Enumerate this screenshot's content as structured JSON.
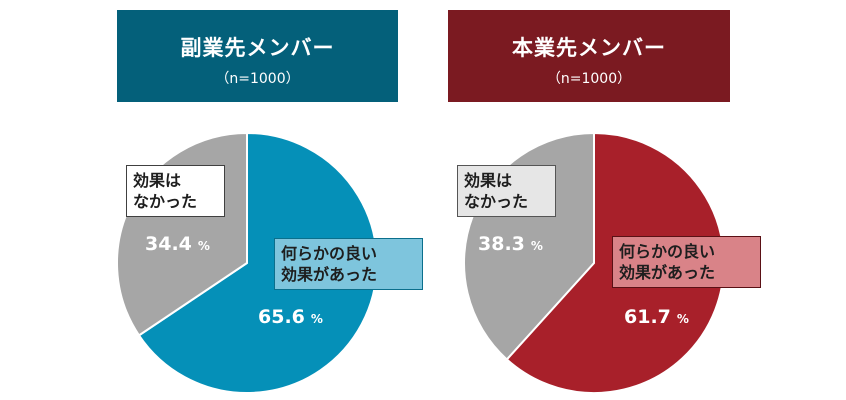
{
  "colors": {
    "left_header": "#04607a",
    "right_header": "#7b1a21",
    "left_main": "#0590b8",
    "right_main": "#a8202a",
    "other": "#a6a6a6"
  },
  "chart_data": [
    {
      "type": "pie",
      "title": "副業先メンバー",
      "subtitle": "（n=1000）",
      "unit": "%",
      "slices": [
        {
          "label": "何らかの良い効果があった",
          "label_lines": [
            "何らかの良い",
            "効果があった"
          ],
          "value": 65.6,
          "value_text": "65.6"
        },
        {
          "label": "効果はなかった",
          "label_lines": [
            "効果は",
            "なかった"
          ],
          "value": 34.4,
          "value_text": "34.4"
        }
      ]
    },
    {
      "type": "pie",
      "title": "本業先メンバー",
      "subtitle": "（n=1000）",
      "unit": "%",
      "slices": [
        {
          "label": "何らかの良い効果があった",
          "label_lines": [
            "何らかの良い",
            "効果があった"
          ],
          "value": 61.7,
          "value_text": "61.7"
        },
        {
          "label": "効果はなかった",
          "label_lines": [
            "効果は",
            "なかった"
          ],
          "value": 38.3,
          "value_text": "38.3"
        }
      ]
    }
  ]
}
